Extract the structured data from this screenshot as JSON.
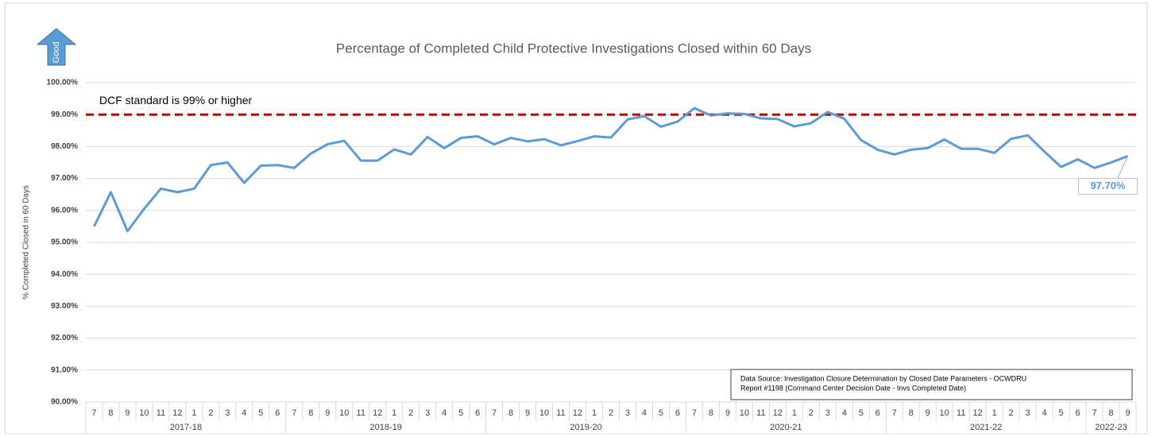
{
  "chart_data": {
    "type": "line",
    "title": "Percentage of Completed Child Protective Investigations Closed within 60 Days",
    "indicator": "Good",
    "ylabel": "% Completed Closed in 60 Days",
    "categories": [
      "7",
      "8",
      "9",
      "10",
      "11",
      "12",
      "1",
      "2",
      "3",
      "4",
      "5",
      "6",
      "7",
      "8",
      "9",
      "10",
      "11",
      "12",
      "1",
      "2",
      "3",
      "4",
      "5",
      "6",
      "7",
      "8",
      "9",
      "10",
      "11",
      "12",
      "1",
      "2",
      "3",
      "4",
      "5",
      "6",
      "7",
      "8",
      "9",
      "10",
      "11",
      "12",
      "1",
      "2",
      "3",
      "4",
      "5",
      "6",
      "7",
      "8",
      "9",
      "10",
      "11",
      "12",
      "1",
      "2",
      "3",
      "4",
      "5",
      "6",
      "7",
      "8",
      "9"
    ],
    "category_group": [
      "2017-18",
      "2017-18",
      "2017-18",
      "2017-18",
      "2017-18",
      "2017-18",
      "2017-18",
      "2017-18",
      "2017-18",
      "2017-18",
      "2017-18",
      "2017-18",
      "2018-19",
      "2018-19",
      "2018-19",
      "2018-19",
      "2018-19",
      "2018-19",
      "2018-19",
      "2018-19",
      "2018-19",
      "2018-19",
      "2018-19",
      "2018-19",
      "2019-20",
      "2019-20",
      "2019-20",
      "2019-20",
      "2019-20",
      "2019-20",
      "2019-20",
      "2019-20",
      "2019-20",
      "2019-20",
      "2019-20",
      "2019-20",
      "2020-21",
      "2020-21",
      "2020-21",
      "2020-21",
      "2020-21",
      "2020-21",
      "2020-21",
      "2020-21",
      "2020-21",
      "2020-21",
      "2020-21",
      "2020-21",
      "2021-22",
      "2021-22",
      "2021-22",
      "2021-22",
      "2021-22",
      "2021-22",
      "2021-22",
      "2021-22",
      "2021-22",
      "2021-22",
      "2021-22",
      "2021-22",
      "2022-23",
      "2022-23",
      "2022-23"
    ],
    "series": [
      {
        "name": "% Completed Closed in 60 Days",
        "color": "#5b9bd5",
        "values": [
          95.5,
          96.57,
          95.35,
          96.05,
          96.68,
          96.57,
          96.68,
          97.42,
          97.5,
          96.86,
          97.4,
          97.42,
          97.33,
          97.78,
          98.07,
          98.18,
          97.56,
          97.56,
          97.91,
          97.75,
          98.3,
          97.95,
          98.27,
          98.32,
          98.07,
          98.27,
          98.16,
          98.23,
          98.04,
          98.17,
          98.32,
          98.28,
          98.85,
          98.95,
          98.62,
          98.78,
          99.2,
          98.97,
          99.04,
          99.02,
          98.88,
          98.86,
          98.63,
          98.73,
          99.08,
          98.87,
          98.2,
          97.9,
          97.75,
          97.9,
          97.95,
          98.22,
          97.93,
          97.93,
          97.8,
          98.24,
          98.35,
          97.84,
          97.36,
          97.6,
          97.33,
          97.5,
          97.7
        ],
        "value_labels": [
          null,
          null,
          null,
          null,
          null,
          null,
          null,
          null,
          null,
          null,
          null,
          null,
          null,
          null,
          null,
          null,
          null,
          null,
          null,
          null,
          null,
          null,
          null,
          null,
          null,
          null,
          null,
          null,
          null,
          null,
          null,
          null,
          null,
          null,
          null,
          null,
          null,
          null,
          null,
          null,
          null,
          null,
          null,
          null,
          null,
          null,
          null,
          null,
          null,
          null,
          null,
          null,
          null,
          null,
          null,
          null,
          null,
          null,
          null,
          null,
          null,
          null,
          "97.70%"
        ]
      }
    ],
    "reference_line": {
      "value": 99,
      "label": "DCF standard is 99% or higher",
      "color": "#c00000"
    },
    "ylim": [
      90,
      100
    ],
    "yticks": [
      {
        "value": 90,
        "label": "90.00%"
      },
      {
        "value": 91,
        "label": "91.00%"
      },
      {
        "value": 92,
        "label": "92.00%"
      },
      {
        "value": 93,
        "label": "93.00%"
      },
      {
        "value": 94,
        "label": "94.00%"
      },
      {
        "value": 95,
        "label": "95.00%"
      },
      {
        "value": 96,
        "label": "96.00%"
      },
      {
        "value": 97,
        "label": "97.00%"
      },
      {
        "value": 98,
        "label": "98.00%"
      },
      {
        "value": 99,
        "label": "99.00%"
      },
      {
        "value": 100,
        "label": "100.00%"
      }
    ],
    "grid": true,
    "note": [
      "Data Source: Investigation Closure Determination by Closed Date Parameters - OCWDRU",
      "Report #1198 (Command Center Decision Date - Invs Completed Date)"
    ]
  }
}
